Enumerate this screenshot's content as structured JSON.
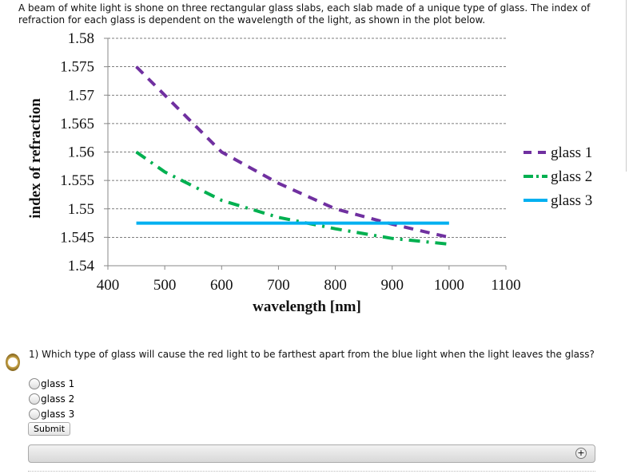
{
  "intro": "A beam of white light is shone on three rectangular glass slabs, each slab made of a unique type of glass. The index of refraction for each glass is dependent on the wavelength of the light, as shown in the plot below.",
  "chart_data": {
    "type": "line",
    "xlabel": "wavelength [nm]",
    "ylabel": "index of refraction",
    "xlim": [
      400,
      1100
    ],
    "ylim": [
      1.54,
      1.58
    ],
    "xticks": [
      "400",
      "500",
      "600",
      "700",
      "800",
      "900",
      "1000",
      "1100"
    ],
    "yticks": [
      "1.58",
      "1.575",
      "1.57",
      "1.565",
      "1.56",
      "1.555",
      "1.55",
      "1.545",
      "1.54"
    ],
    "grid": "horizontal dashed",
    "legend": "right",
    "series": [
      {
        "name": "glass 1",
        "color": "#7030a0",
        "style": "dashed",
        "x": [
          450,
          500,
          600,
          700,
          800,
          900,
          1000
        ],
        "y": [
          1.575,
          1.57,
          1.56,
          1.5545,
          1.55,
          1.5473,
          1.545
        ]
      },
      {
        "name": "glass 2",
        "color": "#00b050",
        "style": "dash-dot",
        "x": [
          450,
          500,
          600,
          700,
          800,
          900,
          1000
        ],
        "y": [
          1.56,
          1.5565,
          1.5515,
          1.5485,
          1.5465,
          1.5448,
          1.5438
        ]
      },
      {
        "name": "glass 3",
        "color": "#00b0f0",
        "style": "solid",
        "x": [
          450,
          1000
        ],
        "y": [
          1.5475,
          1.5475
        ]
      }
    ]
  },
  "question": "1) Which type of glass will cause the red light to be farthest apart from the blue light when the light leaves the glass?",
  "options": [
    "glass 1",
    "glass 2",
    "glass 3"
  ],
  "submit": "Submit",
  "expand_icon": "plus-circle-icon"
}
